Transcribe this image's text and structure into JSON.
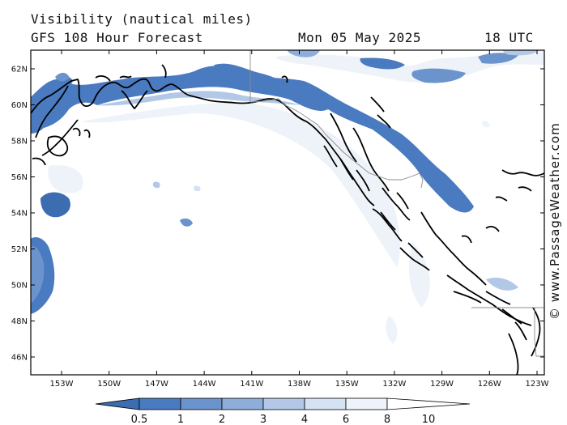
{
  "header": {
    "title": "Visibility (nautical miles)",
    "model": "GFS 108 Hour Forecast",
    "date": "Mon 05 May 2025",
    "time": "18 UTC"
  },
  "credit": "© www.PassageWeather.com",
  "axes": {
    "lat_labels": [
      "62N",
      "60N",
      "58N",
      "56N",
      "54N",
      "52N",
      "50N",
      "48N",
      "46N"
    ],
    "lon_labels": [
      "153W",
      "150W",
      "147W",
      "144W",
      "141W",
      "138W",
      "135W",
      "132W",
      "129W",
      "126W",
      "123W"
    ]
  },
  "colorbar": {
    "labels": [
      "0.5",
      "1",
      "2",
      "3",
      "4",
      "6",
      "8",
      "10"
    ],
    "colors": [
      "#3b6db0",
      "#4a7bc0",
      "#6b93cc",
      "#8eadd9",
      "#b2c8e6",
      "#d5e2f3",
      "#eef3fa",
      "#ffffff"
    ]
  }
}
